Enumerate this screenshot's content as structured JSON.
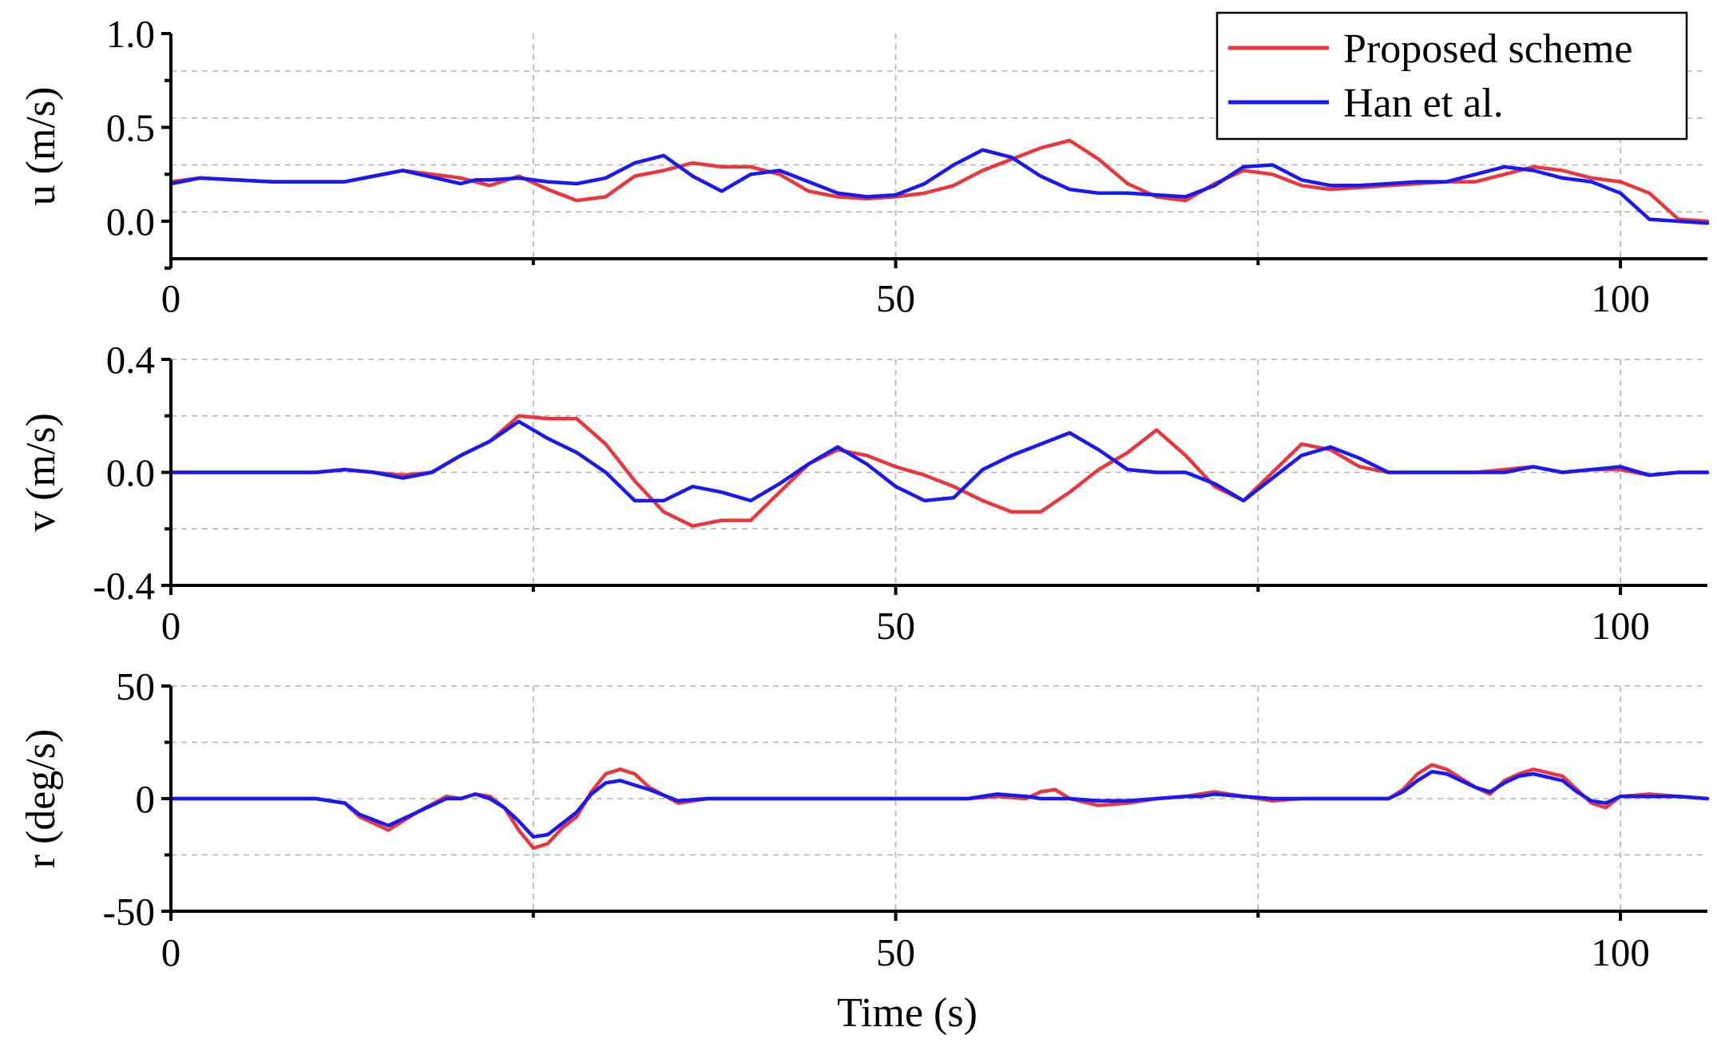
{
  "figure": {
    "xlabel": "Time (s)"
  },
  "legend": {
    "position": "top-right of top panel",
    "items": [
      {
        "name": "Proposed scheme",
        "color": "#e8383f"
      },
      {
        "name": "Han et al.",
        "color": "#1a1aee"
      }
    ]
  },
  "chart_data": [
    {
      "type": "line",
      "title": "",
      "xlabel": "",
      "ylabel": "u (m/s)",
      "xlim": [
        0,
        106
      ],
      "ylim": [
        -0.2,
        1.0
      ],
      "xticks": [
        0,
        50,
        100
      ],
      "xtick_labels": [
        "0",
        "50",
        "100"
      ],
      "yticks": [
        0.0,
        0.5,
        1.0
      ],
      "ytick_labels": [
        "0.0",
        "0.5",
        "1.0"
      ],
      "grid": true,
      "series": [
        {
          "name": "Proposed scheme",
          "color": "#e8383f",
          "x": [
            0,
            2,
            7,
            12,
            16,
            20,
            22,
            24,
            26,
            28,
            30,
            32,
            34,
            36,
            38,
            40,
            42,
            44,
            46,
            48,
            50,
            52,
            54,
            56,
            58,
            60,
            62,
            64,
            66,
            68,
            70,
            72,
            74,
            76,
            78,
            80,
            82,
            84,
            86,
            88,
            90,
            92,
            94,
            96,
            98,
            100,
            102,
            104,
            106
          ],
          "y": [
            0.21,
            0.23,
            0.21,
            0.21,
            0.27,
            0.23,
            0.19,
            0.24,
            0.17,
            0.11,
            0.13,
            0.24,
            0.27,
            0.31,
            0.29,
            0.29,
            0.25,
            0.16,
            0.13,
            0.12,
            0.13,
            0.15,
            0.19,
            0.27,
            0.33,
            0.39,
            0.43,
            0.33,
            0.2,
            0.13,
            0.11,
            0.2,
            0.27,
            0.25,
            0.19,
            0.17,
            0.18,
            0.19,
            0.2,
            0.21,
            0.21,
            0.25,
            0.29,
            0.27,
            0.23,
            0.21,
            0.15,
            0.01,
            0.0
          ]
        },
        {
          "name": "Han et al.",
          "color": "#1a1aee",
          "x": [
            0,
            2,
            7,
            12,
            16,
            20,
            21,
            22,
            24,
            26,
            28,
            30,
            32,
            34,
            36,
            38,
            40,
            42,
            44,
            46,
            48,
            50,
            52,
            54,
            56,
            58,
            60,
            62,
            64,
            66,
            68,
            70,
            72,
            74,
            76,
            78,
            80,
            82,
            84,
            86,
            88,
            90,
            92,
            94,
            96,
            98,
            100,
            102,
            104,
            106
          ],
          "y": [
            0.2,
            0.23,
            0.21,
            0.21,
            0.27,
            0.2,
            0.22,
            0.22,
            0.23,
            0.21,
            0.2,
            0.23,
            0.31,
            0.35,
            0.24,
            0.16,
            0.25,
            0.27,
            0.21,
            0.15,
            0.13,
            0.14,
            0.2,
            0.3,
            0.38,
            0.34,
            0.24,
            0.17,
            0.15,
            0.15,
            0.14,
            0.13,
            0.19,
            0.29,
            0.3,
            0.22,
            0.19,
            0.19,
            0.2,
            0.21,
            0.21,
            0.25,
            0.29,
            0.27,
            0.23,
            0.21,
            0.15,
            0.01,
            0.0,
            -0.01
          ]
        }
      ]
    },
    {
      "type": "line",
      "title": "",
      "xlabel": "",
      "ylabel": "v (m/s)",
      "xlim": [
        0,
        106
      ],
      "ylim": [
        -0.4,
        0.4
      ],
      "xticks": [
        0,
        50,
        100
      ],
      "xtick_labels": [
        "0",
        "50",
        "100"
      ],
      "yticks": [
        -0.4,
        0.0,
        0.4
      ],
      "ytick_labels": [
        "-0.4",
        "0.0",
        "0.4"
      ],
      "grid": true,
      "series": [
        {
          "name": "Proposed scheme",
          "color": "#e8383f",
          "x": [
            0,
            5,
            10,
            12,
            14,
            16,
            18,
            20,
            22,
            24,
            26,
            28,
            30,
            32,
            34,
            36,
            38,
            40,
            42,
            44,
            46,
            48,
            50,
            52,
            54,
            56,
            58,
            60,
            62,
            64,
            66,
            68,
            70,
            72,
            74,
            76,
            78,
            80,
            82,
            84,
            86,
            88,
            90,
            92,
            94,
            96,
            98,
            100,
            102,
            104,
            106
          ],
          "y": [
            0.0,
            0.0,
            0.0,
            0.01,
            0.0,
            -0.01,
            0.0,
            0.06,
            0.11,
            0.2,
            0.19,
            0.19,
            0.1,
            -0.03,
            -0.14,
            -0.19,
            -0.17,
            -0.17,
            -0.07,
            0.03,
            0.08,
            0.06,
            0.02,
            -0.01,
            -0.05,
            -0.1,
            -0.14,
            -0.14,
            -0.07,
            0.01,
            0.07,
            0.15,
            0.06,
            -0.05,
            -0.1,
            0.0,
            0.1,
            0.08,
            0.02,
            0.0,
            0.0,
            0.0,
            0.0,
            0.01,
            0.02,
            0.0,
            0.01,
            0.01,
            -0.01,
            0.0,
            0.0
          ]
        },
        {
          "name": "Han et al.",
          "color": "#1a1aee",
          "x": [
            0,
            5,
            10,
            12,
            14,
            16,
            18,
            20,
            22,
            24,
            26,
            28,
            30,
            32,
            34,
            36,
            38,
            40,
            42,
            44,
            46,
            48,
            50,
            52,
            54,
            56,
            58,
            60,
            62,
            64,
            66,
            68,
            70,
            72,
            74,
            76,
            78,
            80,
            82,
            84,
            86,
            88,
            90,
            92,
            94,
            96,
            98,
            100,
            102,
            104,
            106
          ],
          "y": [
            0.0,
            0.0,
            0.0,
            0.01,
            0.0,
            -0.02,
            0.0,
            0.06,
            0.11,
            0.18,
            0.12,
            0.07,
            0.0,
            -0.1,
            -0.1,
            -0.05,
            -0.07,
            -0.1,
            -0.04,
            0.03,
            0.09,
            0.03,
            -0.05,
            -0.1,
            -0.09,
            0.01,
            0.06,
            0.1,
            0.14,
            0.08,
            0.01,
            0.0,
            0.0,
            -0.04,
            -0.1,
            -0.02,
            0.06,
            0.09,
            0.05,
            0.0,
            0.0,
            0.0,
            0.0,
            0.0,
            0.02,
            0.0,
            0.01,
            0.02,
            -0.01,
            0.0,
            0.0
          ]
        }
      ]
    },
    {
      "type": "line",
      "title": "",
      "xlabel": "Time (s)",
      "ylabel": "r (deg/s)",
      "xlim": [
        0,
        106
      ],
      "ylim": [
        -50,
        50
      ],
      "xticks": [
        0,
        50,
        100
      ],
      "xtick_labels": [
        "0",
        "50",
        "100"
      ],
      "yticks": [
        -50,
        0,
        50
      ],
      "ytick_labels": [
        "-50",
        "0",
        "50"
      ],
      "grid": true,
      "series": [
        {
          "name": "Proposed scheme",
          "color": "#e8383f",
          "x": [
            0,
            5,
            10,
            12,
            13,
            15,
            17,
            19,
            20,
            21,
            22,
            23,
            24,
            25,
            26,
            27,
            28,
            29,
            30,
            31,
            32,
            33,
            35,
            37,
            40,
            50,
            55,
            57,
            59,
            60,
            61,
            62,
            64,
            66,
            68,
            70,
            71,
            72,
            74,
            76,
            78,
            80,
            84,
            85,
            86,
            87,
            88,
            90,
            91,
            92,
            93,
            94,
            96,
            97,
            98,
            99,
            100,
            102,
            104,
            106
          ],
          "y": [
            0,
            0,
            0,
            -2,
            -8,
            -14,
            -6,
            1,
            0,
            2,
            1,
            -4,
            -14,
            -22,
            -20,
            -13,
            -8,
            3,
            11,
            13,
            11,
            5,
            -2,
            0,
            0,
            0,
            0,
            1,
            0,
            3,
            4,
            0,
            -3,
            -2,
            0,
            1,
            2,
            3,
            1,
            -1,
            0,
            0,
            0,
            4,
            11,
            15,
            13,
            5,
            2,
            8,
            11,
            13,
            10,
            4,
            -2,
            -4,
            1,
            2,
            1,
            0
          ]
        },
        {
          "name": "Han et al.",
          "color": "#1a1aee",
          "x": [
            0,
            5,
            10,
            12,
            13,
            15,
            17,
            19,
            20,
            21,
            22,
            23,
            24,
            25,
            26,
            27,
            28,
            29,
            30,
            31,
            32,
            33,
            35,
            37,
            40,
            50,
            55,
            57,
            59,
            60,
            61,
            62,
            64,
            66,
            68,
            70,
            71,
            72,
            74,
            76,
            78,
            80,
            84,
            85,
            86,
            87,
            88,
            90,
            91,
            92,
            93,
            94,
            96,
            97,
            98,
            99,
            100,
            102,
            104,
            106
          ],
          "y": [
            0,
            0,
            0,
            -2,
            -7,
            -12,
            -6,
            0,
            0,
            2,
            0,
            -4,
            -10,
            -17,
            -16,
            -11,
            -6,
            2,
            7,
            8,
            6,
            4,
            -1,
            0,
            0,
            0,
            0,
            2,
            1,
            0,
            0,
            0,
            -1,
            -1,
            0,
            1,
            1,
            2,
            1,
            0,
            0,
            0,
            0,
            3,
            8,
            12,
            11,
            5,
            3,
            7,
            10,
            11,
            8,
            3,
            -1,
            -2,
            1,
            1,
            1,
            0
          ]
        }
      ]
    }
  ]
}
